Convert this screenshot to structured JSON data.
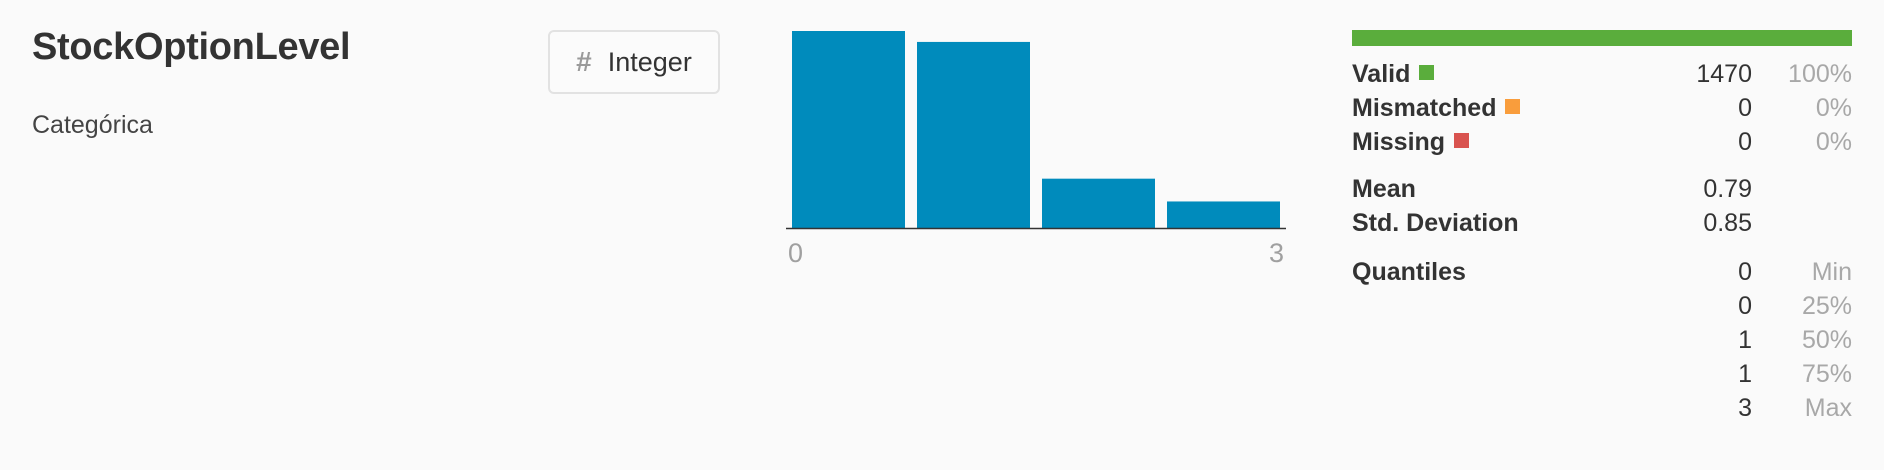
{
  "column": {
    "name": "StockOptionLevel",
    "category": "Categórica",
    "type_label": "Integer",
    "type_icon": "hash-icon"
  },
  "chart_data": {
    "type": "bar",
    "categories": [
      "0",
      "1",
      "2",
      "3"
    ],
    "values": [
      631,
      596,
      158,
      85
    ],
    "xtick_labels": [
      "0",
      "3"
    ],
    "bar_color": "#008bbc",
    "xlabel": "",
    "ylabel": ""
  },
  "stats": {
    "valid_color": "#5aad3c",
    "rows": [
      {
        "label": "Valid",
        "value": "1470",
        "pct": "100%",
        "color": "#5aad3c"
      },
      {
        "label": "Mismatched",
        "value": "0",
        "pct": "0%",
        "color": "#f99d3c"
      },
      {
        "label": "Missing",
        "value": "0",
        "pct": "0%",
        "color": "#d9534f"
      }
    ],
    "mean_label": "Mean",
    "mean_value": "0.79",
    "std_label": "Std. Deviation",
    "std_value": "0.85",
    "quantiles_label": "Quantiles",
    "quantiles": [
      {
        "value": "0",
        "name": "Min"
      },
      {
        "value": "0",
        "name": "25%"
      },
      {
        "value": "1",
        "name": "50%"
      },
      {
        "value": "1",
        "name": "75%"
      },
      {
        "value": "3",
        "name": "Max"
      }
    ]
  }
}
